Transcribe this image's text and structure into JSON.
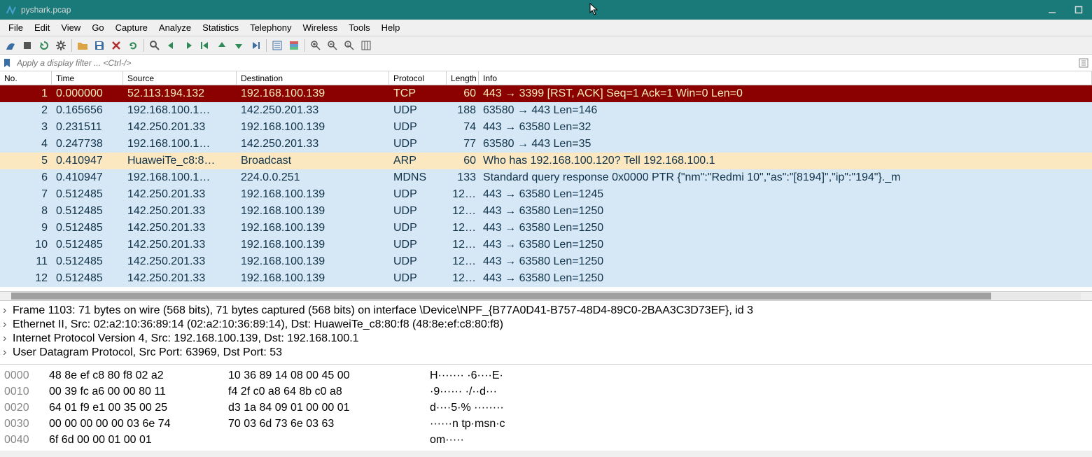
{
  "window": {
    "title": "pyshark.pcap",
    "titlebar_bg": "#1a7a7a",
    "titlebar_fg": "#d8d8d8"
  },
  "menu": [
    "File",
    "Edit",
    "View",
    "Go",
    "Capture",
    "Analyze",
    "Statistics",
    "Telephony",
    "Wireless",
    "Tools",
    "Help"
  ],
  "toolbar": {
    "groups": [
      [
        "shark-fin",
        "stop-square",
        "restart",
        "gear"
      ],
      [
        "folder-open",
        "save",
        "close-x",
        "reload"
      ],
      [
        "find",
        "arrow-left",
        "arrow-right",
        "go-first",
        "go-up",
        "go-down",
        "go-last"
      ],
      [
        "autoscroll",
        "colorize"
      ],
      [
        "zoom-in",
        "zoom-out",
        "zoom-reset",
        "resize-cols"
      ]
    ],
    "colors": {
      "shark-fin": "#3a6ea5",
      "stop-square": "#555555",
      "restart": "#2e8b57",
      "gear": "#555555",
      "folder-open": "#d9a441",
      "save": "#3a6ea5",
      "close-x": "#b03030",
      "reload": "#2e8b57",
      "find": "#555555",
      "arrow-left": "#2e8b57",
      "arrow-right": "#2e8b57",
      "go-first": "#2e8b57",
      "go-up": "#2e8b57",
      "go-down": "#2e8b57",
      "go-last": "#3a6ea5",
      "autoscroll": "#3a6ea5",
      "colorize": "#3a6ea5",
      "zoom-in": "#555555",
      "zoom-out": "#555555",
      "zoom-reset": "#555555",
      "resize-cols": "#555555"
    }
  },
  "filter": {
    "placeholder": "Apply a display filter ... <Ctrl-/>"
  },
  "columns": [
    "No.",
    "Time",
    "Source",
    "Destination",
    "Protocol",
    "Length",
    "Info"
  ],
  "row_colors": {
    "selected_bg": "#8b0000",
    "selected_fg": "#f8f0b8",
    "udp_bg": "#d6e8f5",
    "udp_fg": "#10324a",
    "arp_bg": "#fbe8c0",
    "arp_fg": "#10324a",
    "default_bg": "#ffffff"
  },
  "packets": [
    {
      "no": "1",
      "time": "0.000000",
      "src": "52.113.194.132",
      "dst": "192.168.100.139",
      "proto": "TCP",
      "len": "60",
      "info": "443 → 3399 [RST, ACK] Seq=1 Ack=1 Win=0 Len=0",
      "style": "selected"
    },
    {
      "no": "2",
      "time": "0.165656",
      "src": "192.168.100.1…",
      "dst": "142.250.201.33",
      "proto": "UDP",
      "len": "188",
      "info": "63580 → 443 Len=146",
      "style": "udp"
    },
    {
      "no": "3",
      "time": "0.231511",
      "src": "142.250.201.33",
      "dst": "192.168.100.139",
      "proto": "UDP",
      "len": "74",
      "info": "443 → 63580 Len=32",
      "style": "udp"
    },
    {
      "no": "4",
      "time": "0.247738",
      "src": "192.168.100.1…",
      "dst": "142.250.201.33",
      "proto": "UDP",
      "len": "77",
      "info": "63580 → 443 Len=35",
      "style": "udp"
    },
    {
      "no": "5",
      "time": "0.410947",
      "src": "HuaweiTe_c8:8…",
      "dst": "Broadcast",
      "proto": "ARP",
      "len": "60",
      "info": "Who has 192.168.100.120? Tell 192.168.100.1",
      "style": "arp"
    },
    {
      "no": "6",
      "time": "0.410947",
      "src": "192.168.100.1…",
      "dst": "224.0.0.251",
      "proto": "MDNS",
      "len": "133",
      "info": "Standard query response 0x0000 PTR {\"nm\":\"Redmi 10\",\"as\":\"[8194]\",\"ip\":\"194\"}._m",
      "style": "udp"
    },
    {
      "no": "7",
      "time": "0.512485",
      "src": "142.250.201.33",
      "dst": "192.168.100.139",
      "proto": "UDP",
      "len": "12…",
      "info": "443 → 63580 Len=1245",
      "style": "udp"
    },
    {
      "no": "8",
      "time": "0.512485",
      "src": "142.250.201.33",
      "dst": "192.168.100.139",
      "proto": "UDP",
      "len": "12…",
      "info": "443 → 63580 Len=1250",
      "style": "udp"
    },
    {
      "no": "9",
      "time": "0.512485",
      "src": "142.250.201.33",
      "dst": "192.168.100.139",
      "proto": "UDP",
      "len": "12…",
      "info": "443 → 63580 Len=1250",
      "style": "udp"
    },
    {
      "no": "10",
      "time": "0.512485",
      "src": "142.250.201.33",
      "dst": "192.168.100.139",
      "proto": "UDP",
      "len": "12…",
      "info": "443 → 63580 Len=1250",
      "style": "udp"
    },
    {
      "no": "11",
      "time": "0.512485",
      "src": "142.250.201.33",
      "dst": "192.168.100.139",
      "proto": "UDP",
      "len": "12…",
      "info": "443 → 63580 Len=1250",
      "style": "udp"
    },
    {
      "no": "12",
      "time": "0.512485",
      "src": "142.250.201.33",
      "dst": "192.168.100.139",
      "proto": "UDP",
      "len": "12…",
      "info": "443 → 63580 Len=1250",
      "style": "udp"
    }
  ],
  "details": [
    "Frame 1103: 71 bytes on wire (568 bits), 71 bytes captured (568 bits) on interface \\Device\\NPF_{B77A0D41-B757-48D4-89C0-2BAA3C3D73EF}, id 3",
    "Ethernet II, Src: 02:a2:10:36:89:14 (02:a2:10:36:89:14), Dst: HuaweiTe_c8:80:f8 (48:8e:ef:c8:80:f8)",
    "Internet Protocol Version 4, Src: 192.168.100.139, Dst: 192.168.100.1",
    "User Datagram Protocol, Src Port: 63969, Dst Port: 53"
  ],
  "hex": [
    {
      "off": "0000",
      "b1": "48 8e ef c8 80 f8 02 a2",
      "b2": "10 36 89 14 08 00 45 00",
      "asc": "H······· ·6····E·"
    },
    {
      "off": "0010",
      "b1": "00 39 fc a6 00 00 80 11",
      "b2": "f4 2f c0 a8 64 8b c0 a8",
      "asc": "·9······ ·/··d···"
    },
    {
      "off": "0020",
      "b1": "64 01 f9 e1 00 35 00 25",
      "b2": "d3 1a 84 09 01 00 00 01",
      "asc": "d····5·% ········"
    },
    {
      "off": "0030",
      "b1": "00 00 00 00 00 03 6e 74",
      "b2": "70 03 6d 73 6e 03 63",
      "asc": "······n tp·msn·c"
    },
    {
      "off": "0040",
      "b1": "6f 6d 00 00 01 00 01",
      "b2": "",
      "asc": "om·····"
    }
  ]
}
